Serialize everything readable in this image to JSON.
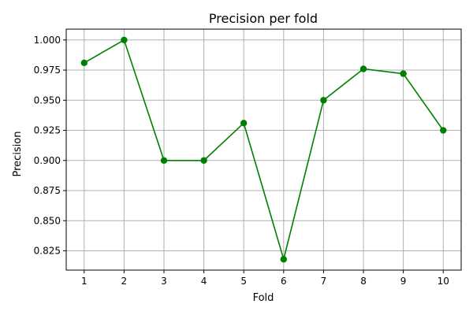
{
  "chart_data": {
    "type": "line",
    "title": "Precision per fold",
    "xlabel": "Fold",
    "ylabel": "Precision",
    "x": [
      1,
      2,
      3,
      4,
      5,
      6,
      7,
      8,
      9,
      10
    ],
    "xticks": [
      "1",
      "2",
      "3",
      "4",
      "5",
      "6",
      "7",
      "8",
      "9",
      "10"
    ],
    "xlim": [
      0.55,
      10.45
    ],
    "ylim": [
      0.809,
      1.009
    ],
    "yticks": [
      0.825,
      0.85,
      0.875,
      0.9,
      0.925,
      0.95,
      0.975,
      1.0
    ],
    "ytick_labels": [
      "0.825",
      "0.850",
      "0.875",
      "0.900",
      "0.925",
      "0.950",
      "0.975",
      "1.000"
    ],
    "grid": true,
    "series": [
      {
        "values": [
          0.981,
          1.0,
          0.9,
          0.9,
          0.931,
          0.818,
          0.95,
          0.976,
          0.972,
          0.925
        ],
        "color": "#008000",
        "marker": "circle"
      }
    ]
  }
}
